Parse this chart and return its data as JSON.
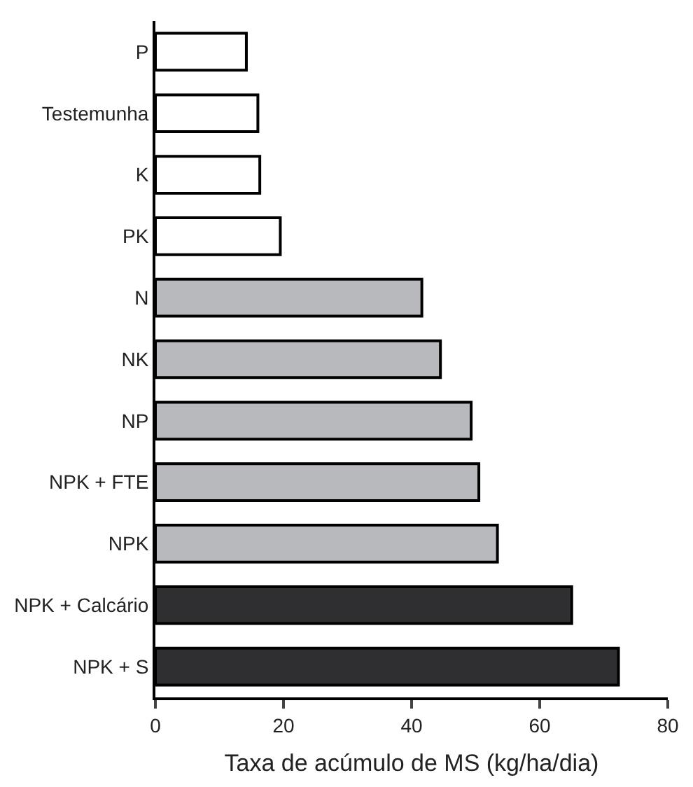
{
  "chart_data": {
    "type": "bar",
    "orientation": "horizontal",
    "xlabel": "Taxa de acúmulo de MS (kg/ha/dia)",
    "categories": [
      "P",
      "Testemunha",
      "K",
      "PK",
      "N",
      "NK",
      "NP",
      "NPK + FTE",
      "NPK",
      "NPK + Calcário",
      "NPK + S"
    ],
    "values": [
      14.2,
      16.0,
      16.3,
      19.5,
      41.6,
      44.5,
      49.3,
      50.5,
      53.4,
      65.0,
      72.3
    ],
    "colors": [
      "#ffffff",
      "#ffffff",
      "#ffffff",
      "#ffffff",
      "#b8b9bc",
      "#b8b9bc",
      "#b8b9bc",
      "#b8b9bc",
      "#b8b9bc",
      "#2f2f31",
      "#2f2f31"
    ],
    "xlim": [
      0,
      80
    ],
    "xticks": [
      0,
      20,
      40,
      60,
      80
    ]
  }
}
